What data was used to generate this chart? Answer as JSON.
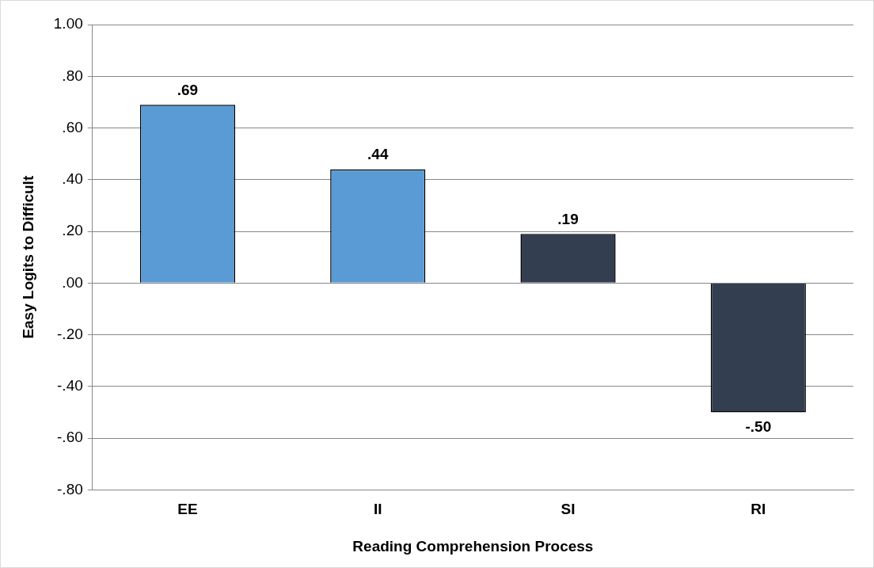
{
  "chart_data": {
    "type": "bar",
    "xlabel": "Reading Comprehension Process",
    "ylabel": "Easy Logits to Difficult",
    "categories": [
      "EE",
      "II",
      "SI",
      "RI"
    ],
    "values": [
      0.69,
      0.44,
      0.19,
      -0.5
    ],
    "colors": [
      "#5b9bd5",
      "#5b9bd5",
      "#333f50",
      "#333f50"
    ],
    "value_labels": [
      ".69",
      ".44",
      ".19",
      "-.50"
    ],
    "ylim": [
      -0.8,
      1.0
    ],
    "yticks": [
      {
        "value": -0.8,
        "label": "-.80"
      },
      {
        "value": -0.6,
        "label": "-.60"
      },
      {
        "value": -0.4,
        "label": "-.40"
      },
      {
        "value": -0.2,
        "label": "-.20"
      },
      {
        "value": 0,
        "label": ".00"
      },
      {
        "value": 0.2,
        "label": ".20"
      },
      {
        "value": 0.4,
        "label": ".40"
      },
      {
        "value": 0.6,
        "label": ".60"
      },
      {
        "value": 0.8,
        "label": ".80"
      },
      {
        "value": 1.0,
        "label": "1.00"
      }
    ],
    "grid": "y",
    "legend": false
  }
}
